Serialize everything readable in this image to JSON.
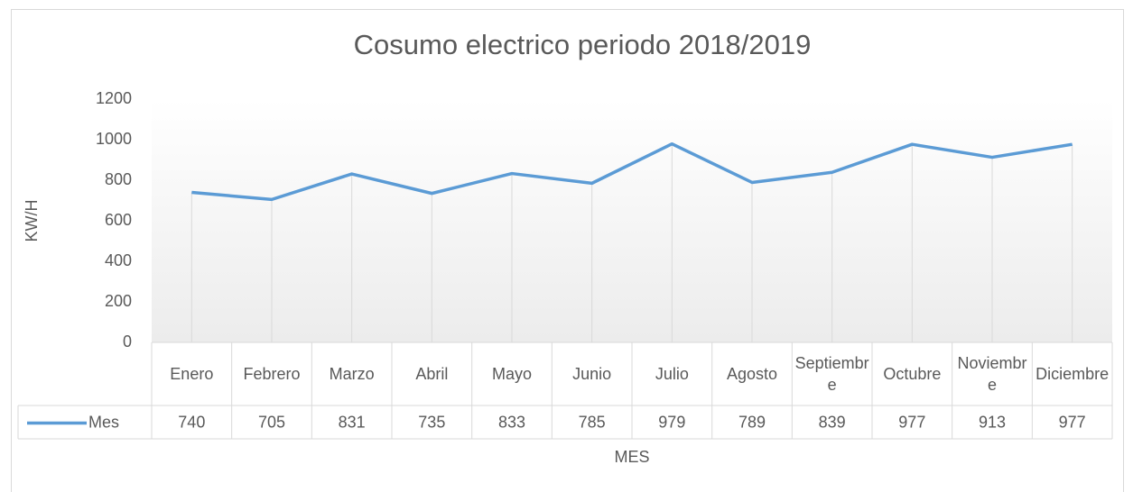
{
  "chart_data": {
    "type": "line",
    "title": "Cosumo electrico periodo 2018/2019",
    "x_label": "MES",
    "y_label": "KW/H",
    "categories": [
      "Enero",
      "Febrero",
      "Marzo",
      "Abril",
      "Mayo",
      "Junio",
      "Julio",
      "Agosto",
      "Septiembre",
      "Octubre",
      "Noviembre",
      "Diciembre"
    ],
    "series": [
      {
        "name": "Mes",
        "color": "#5b9bd5",
        "values": [
          740,
          705,
          831,
          735,
          833,
          785,
          979,
          789,
          839,
          977,
          913,
          977
        ]
      }
    ],
    "ylim": [
      0,
      1200
    ],
    "yticks": [
      0,
      200,
      400,
      600,
      800,
      1000,
      1200
    ],
    "drop_lines": true,
    "data_table": true
  }
}
